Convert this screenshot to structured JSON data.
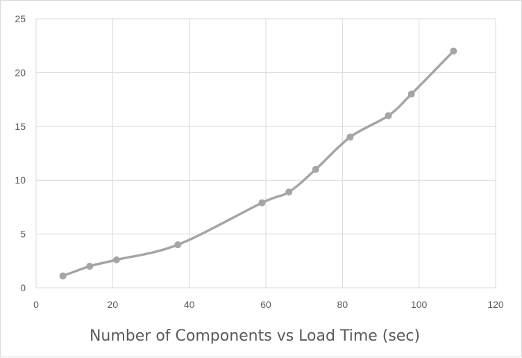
{
  "chart_data": {
    "type": "scatter",
    "title": "Number of Components vs Load Time (sec)",
    "xlabel": "",
    "ylabel": "",
    "xlim": [
      0,
      120
    ],
    "ylim": [
      0,
      25
    ],
    "x_ticks": [
      0,
      20,
      40,
      60,
      80,
      100,
      120
    ],
    "y_ticks": [
      0,
      5,
      10,
      15,
      20,
      25
    ],
    "grid": true,
    "smooth_line": true,
    "series": [
      {
        "color": "#a5a5a5",
        "points": [
          {
            "x": 7,
            "y": 1.1
          },
          {
            "x": 14,
            "y": 2.0
          },
          {
            "x": 21,
            "y": 2.6
          },
          {
            "x": 37,
            "y": 4.0
          },
          {
            "x": 59,
            "y": 7.9
          },
          {
            "x": 66,
            "y": 8.9
          },
          {
            "x": 73,
            "y": 11.0
          },
          {
            "x": 82,
            "y": 14.0
          },
          {
            "x": 92,
            "y": 16.0
          },
          {
            "x": 98,
            "y": 18.0
          },
          {
            "x": 109,
            "y": 22.0
          }
        ]
      }
    ]
  }
}
